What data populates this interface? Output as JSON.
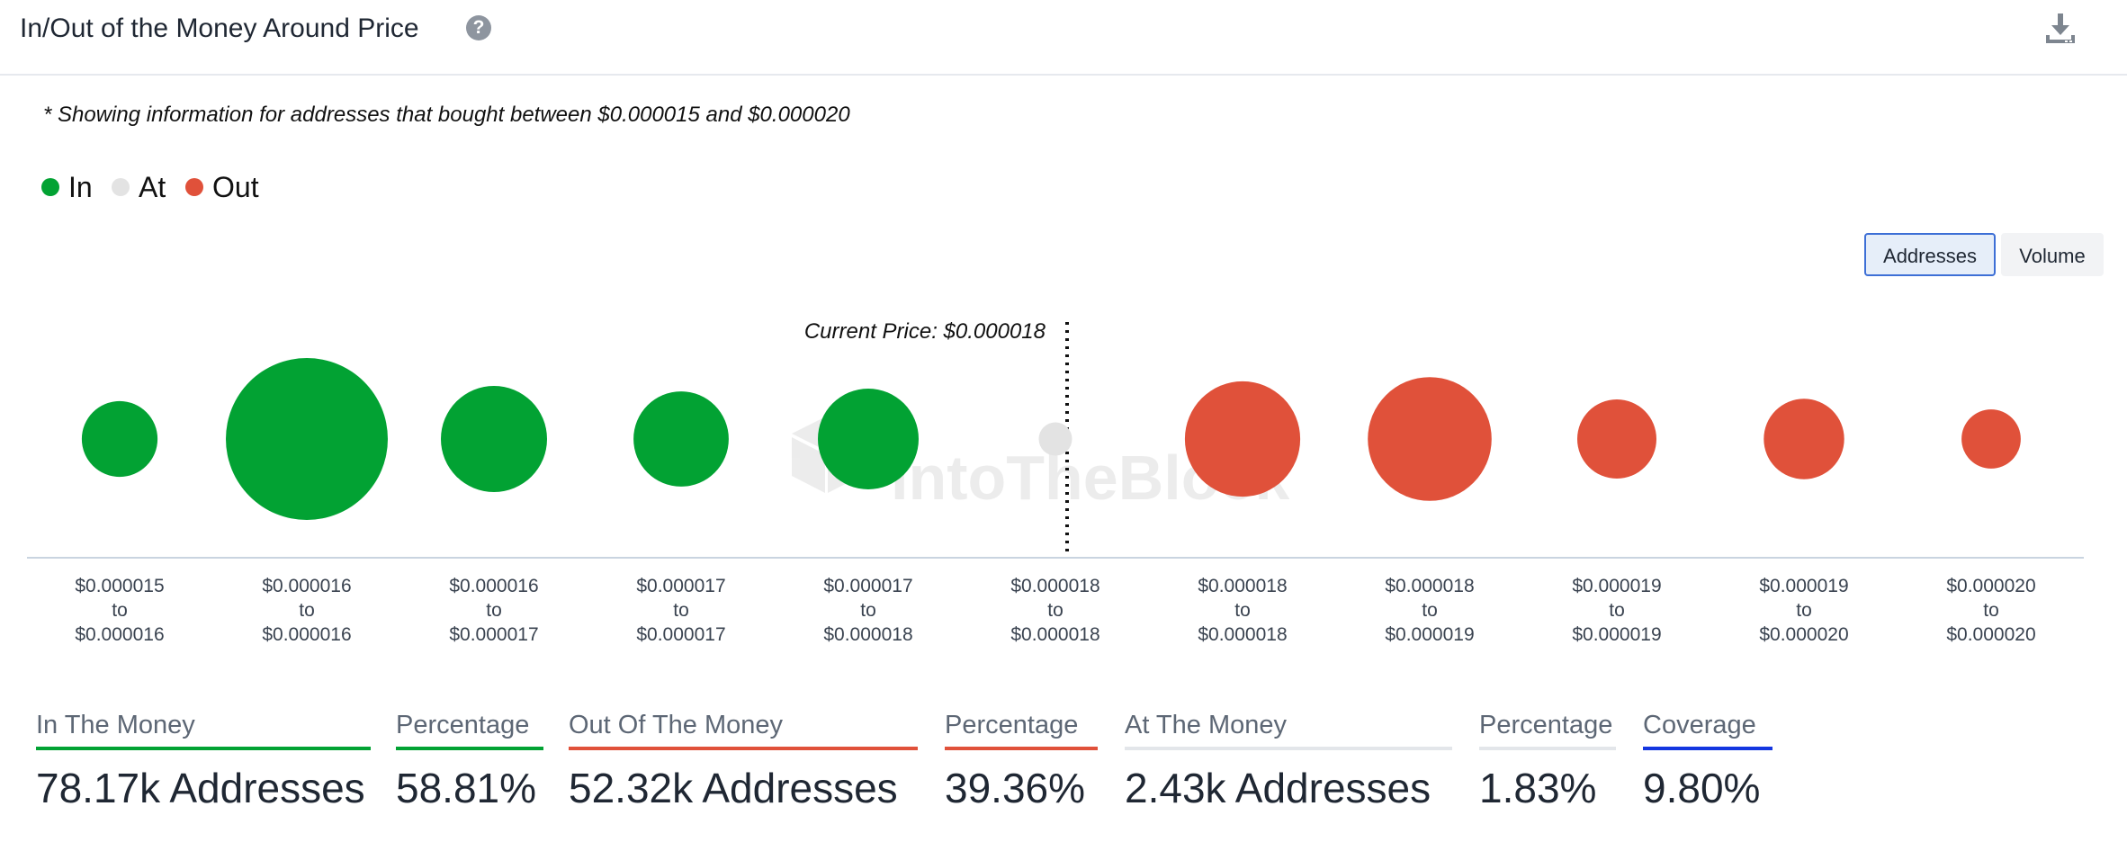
{
  "header": {
    "title": "In/Out of the Money Around Price",
    "help_glyph": "?",
    "help_icon": "question-circle-icon",
    "download_icon": "download-icon"
  },
  "note": "* Showing information for addresses that bought between $0.000015 and $0.000020",
  "legend": [
    {
      "label": "In",
      "color": "#02a233"
    },
    {
      "label": "At",
      "color": "#e3e3e3"
    },
    {
      "label": "Out",
      "color": "#e0513a"
    }
  ],
  "toggle": {
    "options": [
      "Addresses",
      "Volume"
    ],
    "selected": "Addresses"
  },
  "chart_data": {
    "type": "bubble",
    "watermark": "IntoTheBlock",
    "current_price_label": "Current Price: $0.000018",
    "current_price_after_index": 5,
    "categories": [
      [
        "$0.000015",
        "to",
        "$0.000016"
      ],
      [
        "$0.000016",
        "to",
        "$0.000016"
      ],
      [
        "$0.000016",
        "to",
        "$0.000017"
      ],
      [
        "$0.000017",
        "to",
        "$0.000017"
      ],
      [
        "$0.000017",
        "to",
        "$0.000018"
      ],
      [
        "$0.000018",
        "to",
        "$0.000018"
      ],
      [
        "$0.000018",
        "to",
        "$0.000018"
      ],
      [
        "$0.000018",
        "to",
        "$0.000019"
      ],
      [
        "$0.000019",
        "to",
        "$0.000019"
      ],
      [
        "$0.000019",
        "to",
        "$0.000020"
      ],
      [
        "$0.000020",
        "to",
        "$0.000020"
      ]
    ],
    "status": [
      "in",
      "in",
      "in",
      "in",
      "in",
      "at",
      "out",
      "out",
      "out",
      "out",
      "out"
    ],
    "values": [
      3.1,
      14.2,
      6.1,
      4.9,
      5.5,
      0.6,
      7.2,
      8.3,
      3.4,
      3.5,
      1.9
    ],
    "colors": {
      "in": "#02a233",
      "at": "#e3e3e3",
      "out": "#e0513a"
    }
  },
  "stats": [
    {
      "label": "In The Money",
      "value": "78.17k Addresses",
      "color": "#02a233"
    },
    {
      "label": "Percentage",
      "value": "58.81%",
      "color": "#02a233"
    },
    {
      "label": "Out Of The Money",
      "value": "52.32k Addresses",
      "color": "#e0513a"
    },
    {
      "label": "Percentage",
      "value": "39.36%",
      "color": "#e0513a"
    },
    {
      "label": "At The Money",
      "value": "2.43k Addresses",
      "color": "#e3e6ea"
    },
    {
      "label": "Percentage",
      "value": "1.83%",
      "color": "#e3e6ea"
    },
    {
      "label": "Coverage",
      "value": "9.80%",
      "color": "#1436e0"
    }
  ]
}
